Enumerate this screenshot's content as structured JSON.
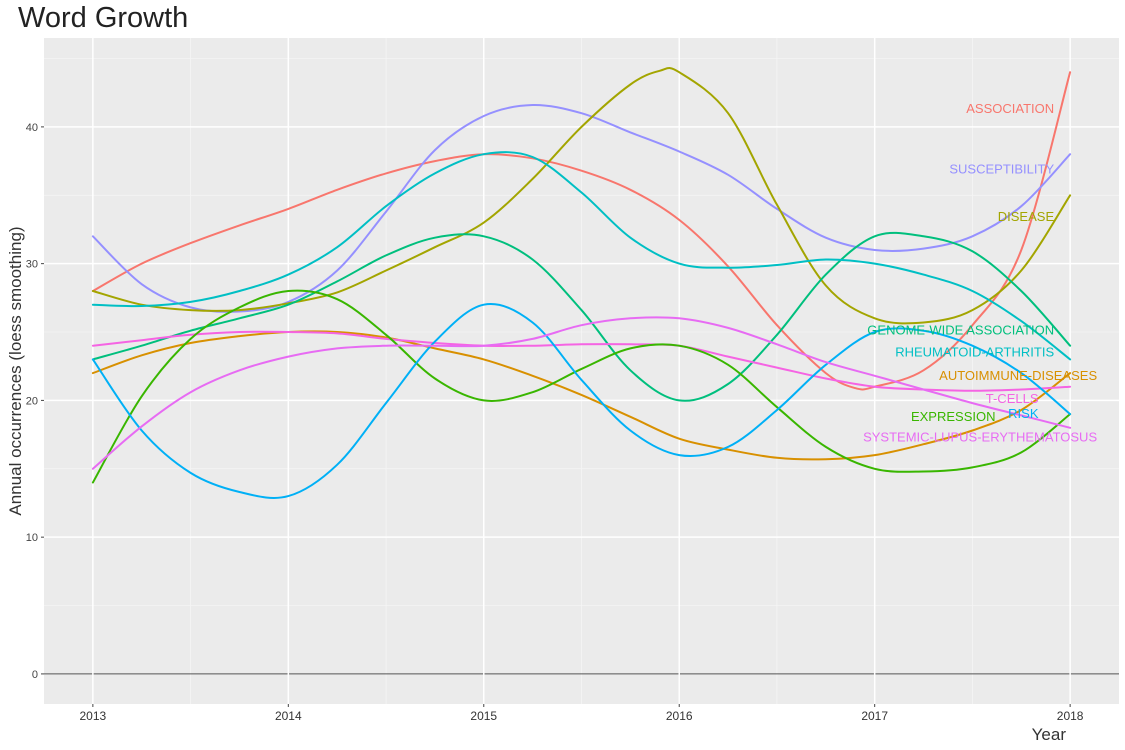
{
  "chart_data": {
    "type": "line",
    "title": "Word Growth",
    "xlabel": "Year",
    "ylabel": "Annual occurrences (loess smoothing)",
    "xlim": [
      2012.75,
      2018.25
    ],
    "ylim": [
      -2.2,
      46.5
    ],
    "x_ticks": [
      2013,
      2014,
      2015,
      2016,
      2017,
      2018
    ],
    "y_ticks": [
      0,
      10,
      20,
      30,
      40
    ],
    "grid": true,
    "legend": "direct labels at line ends",
    "series": [
      {
        "name": "ASSOCIATION",
        "color": "#F8766D",
        "points": [
          [
            2013,
            28
          ],
          [
            2013.25,
            30
          ],
          [
            2013.5,
            31.5
          ],
          [
            2013.75,
            32.8
          ],
          [
            2014,
            34
          ],
          [
            2014.25,
            35.4
          ],
          [
            2014.5,
            36.6
          ],
          [
            2014.75,
            37.5
          ],
          [
            2015,
            38
          ],
          [
            2015.25,
            37.7
          ],
          [
            2015.5,
            36.8
          ],
          [
            2015.75,
            35.4
          ],
          [
            2016,
            33.2
          ],
          [
            2016.25,
            29.8
          ],
          [
            2016.5,
            25.5
          ],
          [
            2016.75,
            22
          ],
          [
            2016.9,
            20.9
          ],
          [
            2017,
            21
          ],
          [
            2017.25,
            22.2
          ],
          [
            2017.5,
            25.5
          ],
          [
            2017.75,
            31
          ],
          [
            2018,
            44
          ]
        ]
      },
      {
        "name": "SUSCEPTIBILITY",
        "color": "#9590FF",
        "points": [
          [
            2013,
            32
          ],
          [
            2013.25,
            28.5
          ],
          [
            2013.5,
            26.8
          ],
          [
            2013.75,
            26.5
          ],
          [
            2014,
            27.2
          ],
          [
            2014.25,
            29.5
          ],
          [
            2014.5,
            33.8
          ],
          [
            2014.75,
            38.3
          ],
          [
            2015,
            40.8
          ],
          [
            2015.25,
            41.6
          ],
          [
            2015.5,
            41
          ],
          [
            2015.75,
            39.6
          ],
          [
            2016,
            38.2
          ],
          [
            2016.25,
            36.5
          ],
          [
            2016.5,
            34
          ],
          [
            2016.75,
            31.9
          ],
          [
            2017,
            31
          ],
          [
            2017.25,
            31.1
          ],
          [
            2017.5,
            32
          ],
          [
            2017.75,
            34.2
          ],
          [
            2018,
            38
          ]
        ]
      },
      {
        "name": "DISEASE",
        "color": "#A3A500",
        "points": [
          [
            2013,
            28
          ],
          [
            2013.25,
            27
          ],
          [
            2013.5,
            26.6
          ],
          [
            2013.75,
            26.6
          ],
          [
            2014,
            27.1
          ],
          [
            2014.25,
            27.9
          ],
          [
            2014.5,
            29.5
          ],
          [
            2014.75,
            31.2
          ],
          [
            2015,
            33
          ],
          [
            2015.25,
            36.2
          ],
          [
            2015.5,
            40
          ],
          [
            2015.75,
            43.1
          ],
          [
            2015.9,
            44.1
          ],
          [
            2016,
            44
          ],
          [
            2016.25,
            41
          ],
          [
            2016.5,
            34.3
          ],
          [
            2016.75,
            28.4
          ],
          [
            2017,
            26
          ],
          [
            2017.25,
            25.7
          ],
          [
            2017.5,
            26.6
          ],
          [
            2017.75,
            29.5
          ],
          [
            2018,
            35
          ]
        ]
      },
      {
        "name": "GENOME-WIDE ASSOCIATION",
        "color": "#00BF7D",
        "points": [
          [
            2013,
            23
          ],
          [
            2013.25,
            24
          ],
          [
            2013.5,
            25.1
          ],
          [
            2013.75,
            26
          ],
          [
            2014,
            27
          ],
          [
            2014.25,
            28.7
          ],
          [
            2014.5,
            30.6
          ],
          [
            2014.75,
            31.9
          ],
          [
            2015,
            32
          ],
          [
            2015.25,
            30.3
          ],
          [
            2015.5,
            26.6
          ],
          [
            2015.75,
            22.2
          ],
          [
            2016,
            20
          ],
          [
            2016.25,
            21.2
          ],
          [
            2016.5,
            24.8
          ],
          [
            2016.75,
            29.2
          ],
          [
            2017,
            32
          ],
          [
            2017.25,
            32
          ],
          [
            2017.5,
            30.9
          ],
          [
            2017.75,
            28
          ],
          [
            2018,
            24
          ]
        ]
      },
      {
        "name": "RHEUMATOID-ARTHRITIS",
        "color": "#00BFC4",
        "points": [
          [
            2013,
            27
          ],
          [
            2013.25,
            26.9
          ],
          [
            2013.5,
            27.2
          ],
          [
            2013.75,
            28
          ],
          [
            2014,
            29.2
          ],
          [
            2014.25,
            31.2
          ],
          [
            2014.5,
            34.2
          ],
          [
            2014.75,
            36.6
          ],
          [
            2015,
            38
          ],
          [
            2015.25,
            37.8
          ],
          [
            2015.5,
            35.2
          ],
          [
            2015.75,
            31.9
          ],
          [
            2016,
            30
          ],
          [
            2016.25,
            29.7
          ],
          [
            2016.5,
            29.9
          ],
          [
            2016.75,
            30.3
          ],
          [
            2017,
            30
          ],
          [
            2017.25,
            29.2
          ],
          [
            2017.5,
            28
          ],
          [
            2017.75,
            25.8
          ],
          [
            2018,
            23
          ]
        ]
      },
      {
        "name": "AUTOIMMUNE-DISEASES",
        "color": "#D89000",
        "points": [
          [
            2013,
            22
          ],
          [
            2013.25,
            23.3
          ],
          [
            2013.5,
            24.2
          ],
          [
            2013.75,
            24.7
          ],
          [
            2014,
            25
          ],
          [
            2014.25,
            25
          ],
          [
            2014.5,
            24.6
          ],
          [
            2014.75,
            23.8
          ],
          [
            2015,
            23
          ],
          [
            2015.25,
            21.8
          ],
          [
            2015.5,
            20.4
          ],
          [
            2015.75,
            18.8
          ],
          [
            2016,
            17.2
          ],
          [
            2016.25,
            16.4
          ],
          [
            2016.5,
            15.8
          ],
          [
            2016.75,
            15.7
          ],
          [
            2017,
            16
          ],
          [
            2017.25,
            16.8
          ],
          [
            2017.5,
            17.8
          ],
          [
            2017.75,
            19.3
          ],
          [
            2018,
            22
          ]
        ]
      },
      {
        "name": "T-CELLS",
        "color": "#F564E3",
        "points": [
          [
            2013,
            24
          ],
          [
            2013.25,
            24.4
          ],
          [
            2013.5,
            24.8
          ],
          [
            2013.75,
            25
          ],
          [
            2014,
            25
          ],
          [
            2014.25,
            24.9
          ],
          [
            2014.5,
            24.5
          ],
          [
            2014.75,
            24.2
          ],
          [
            2015,
            24
          ],
          [
            2015.25,
            24
          ],
          [
            2015.5,
            24.1
          ],
          [
            2015.75,
            24.1
          ],
          [
            2016,
            24
          ],
          [
            2016.25,
            23.2
          ],
          [
            2016.5,
            22.4
          ],
          [
            2016.75,
            21.6
          ],
          [
            2017,
            21
          ],
          [
            2017.25,
            20.8
          ],
          [
            2017.5,
            20.7
          ],
          [
            2017.75,
            20.8
          ],
          [
            2018,
            21
          ]
        ]
      },
      {
        "name": "EXPRESSION",
        "color": "#39B600",
        "points": [
          [
            2013,
            14
          ],
          [
            2013.25,
            20.3
          ],
          [
            2013.5,
            24.5
          ],
          [
            2013.75,
            26.8
          ],
          [
            2014,
            28
          ],
          [
            2014.25,
            27.4
          ],
          [
            2014.5,
            24.8
          ],
          [
            2014.75,
            21.6
          ],
          [
            2015,
            20
          ],
          [
            2015.25,
            20.6
          ],
          [
            2015.5,
            22.3
          ],
          [
            2015.75,
            23.8
          ],
          [
            2016,
            24
          ],
          [
            2016.25,
            22.6
          ],
          [
            2016.5,
            19.5
          ],
          [
            2016.75,
            16.6
          ],
          [
            2017,
            15
          ],
          [
            2017.25,
            14.8
          ],
          [
            2017.5,
            15.1
          ],
          [
            2017.75,
            16.2
          ],
          [
            2018,
            19
          ]
        ]
      },
      {
        "name": "RISK",
        "color": "#00B0F6",
        "points": [
          [
            2013,
            23
          ],
          [
            2013.25,
            17.8
          ],
          [
            2013.5,
            14.7
          ],
          [
            2013.75,
            13.3
          ],
          [
            2014,
            13
          ],
          [
            2014.25,
            15.3
          ],
          [
            2014.5,
            19.8
          ],
          [
            2014.75,
            24.3
          ],
          [
            2015,
            27
          ],
          [
            2015.25,
            25.7
          ],
          [
            2015.5,
            21.5
          ],
          [
            2015.75,
            17.8
          ],
          [
            2016,
            16
          ],
          [
            2016.25,
            16.6
          ],
          [
            2016.5,
            19.3
          ],
          [
            2016.75,
            22.6
          ],
          [
            2017,
            25
          ],
          [
            2017.25,
            25.1
          ],
          [
            2017.5,
            24
          ],
          [
            2017.75,
            22
          ],
          [
            2018,
            19
          ]
        ]
      },
      {
        "name": "SYSTEMIC-LUPUS-ERYTHEMATOSUS",
        "color": "#E76BF3",
        "points": [
          [
            2013,
            15
          ],
          [
            2013.25,
            18.1
          ],
          [
            2013.5,
            20.6
          ],
          [
            2013.75,
            22.2
          ],
          [
            2014,
            23.2
          ],
          [
            2014.25,
            23.8
          ],
          [
            2014.5,
            24
          ],
          [
            2014.75,
            24
          ],
          [
            2015,
            24
          ],
          [
            2015.25,
            24.5
          ],
          [
            2015.5,
            25.5
          ],
          [
            2015.75,
            26
          ],
          [
            2016,
            26
          ],
          [
            2016.25,
            25.3
          ],
          [
            2016.5,
            24.1
          ],
          [
            2016.75,
            22.8
          ],
          [
            2017,
            21.8
          ],
          [
            2017.25,
            20.8
          ],
          [
            2017.5,
            19.8
          ],
          [
            2017.75,
            18.9
          ],
          [
            2018,
            18
          ]
        ]
      }
    ],
    "end_labels": [
      {
        "text": "ASSOCIATION",
        "color": "#F8766D",
        "at": [
          2018,
          41.3
        ]
      },
      {
        "text": "SUSCEPTIBILITY",
        "color": "#9590FF",
        "at": [
          2018,
          36.9
        ]
      },
      {
        "text": "DISEASE",
        "color": "#A3A500",
        "at": [
          2018,
          33.4
        ]
      },
      {
        "text": "GENOME-WIDE ASSOCIATION",
        "color": "#00BF7D",
        "at": [
          2018,
          25.1
        ]
      },
      {
        "text": "RHEUMATOID-ARTHRITIS",
        "color": "#00BFC4",
        "at": [
          2018,
          23.5
        ]
      },
      {
        "text": "AUTOIMMUNE-DISEASES",
        "color": "#D89000",
        "at": [
          2018.22,
          21.8
        ]
      },
      {
        "text": "T-CELLS",
        "color": "#F564E3",
        "at": [
          2017.92,
          20.1
        ]
      },
      {
        "text": "EXPRESSION",
        "color": "#39B600",
        "at": [
          2017.7,
          18.8
        ]
      },
      {
        "text": "RISK",
        "color": "#00B0F6",
        "at": [
          2017.92,
          19.0
        ]
      },
      {
        "text": "SYSTEMIC-LUPUS-ERYTHEMATOSUS",
        "color": "#E76BF3",
        "at": [
          2018.22,
          17.3
        ]
      }
    ]
  }
}
